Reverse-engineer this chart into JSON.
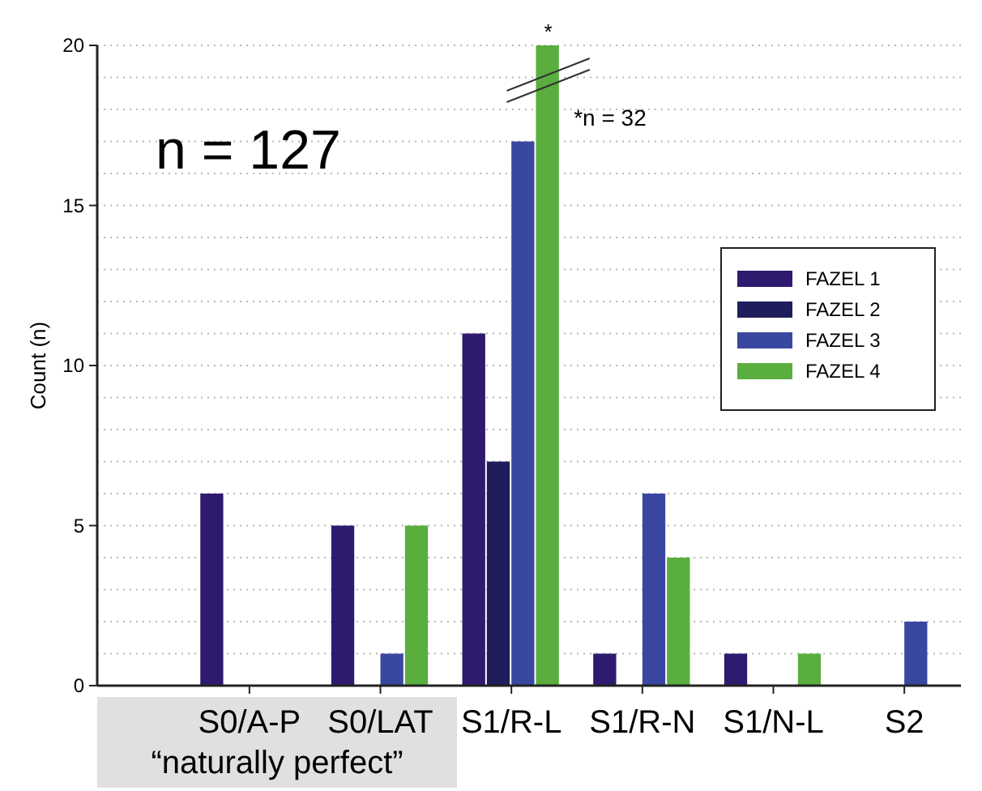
{
  "chart_data": {
    "type": "bar",
    "ylabel": "Count (n)",
    "categories": [
      "S0/A-P",
      "S0/LAT",
      "S1/R-L",
      "S1/R-N",
      "S1/N-L",
      "S2"
    ],
    "series": [
      {
        "name": "FAZEL 1",
        "color": "#2e1a6e",
        "values": [
          6,
          5,
          11,
          1,
          1,
          0
        ]
      },
      {
        "name": "FAZEL 2",
        "color": "#201d5c",
        "values": [
          0,
          0,
          7,
          0,
          0,
          0
        ]
      },
      {
        "name": "FAZEL 3",
        "color": "#3a47a0",
        "values": [
          0,
          1,
          17,
          6,
          0,
          2
        ]
      },
      {
        "name": "FAZEL 4",
        "color": "#5aae3e",
        "values": [
          0,
          5,
          20,
          4,
          1,
          0
        ],
        "value_labels": [
          null,
          null,
          "*",
          null,
          null,
          null
        ]
      }
    ],
    "ylim": [
      0,
      20
    ],
    "yticks": [
      0,
      {
        "value": 1,
        "label": null
      },
      {
        "value": 2,
        "label": null
      },
      {
        "value": 3,
        "label": null
      },
      {
        "value": 4,
        "label": null
      },
      5,
      {
        "value": 6,
        "label": null
      },
      {
        "value": 7,
        "label": null
      },
      {
        "value": 8,
        "label": null
      },
      {
        "value": 9,
        "label": null
      },
      10,
      {
        "value": 11,
        "label": null
      },
      {
        "value": 12,
        "label": null
      },
      {
        "value": 13,
        "label": null
      },
      {
        "value": 14,
        "label": null
      },
      15,
      {
        "value": 16,
        "label": null
      },
      {
        "value": 17,
        "label": null
      },
      {
        "value": 18,
        "label": null
      },
      {
        "value": 19,
        "label": null
      },
      20
    ],
    "grid": "y",
    "legend": "right",
    "annotations": [
      "n = 127",
      "*n = 32",
      "“naturally perfect”"
    ]
  }
}
